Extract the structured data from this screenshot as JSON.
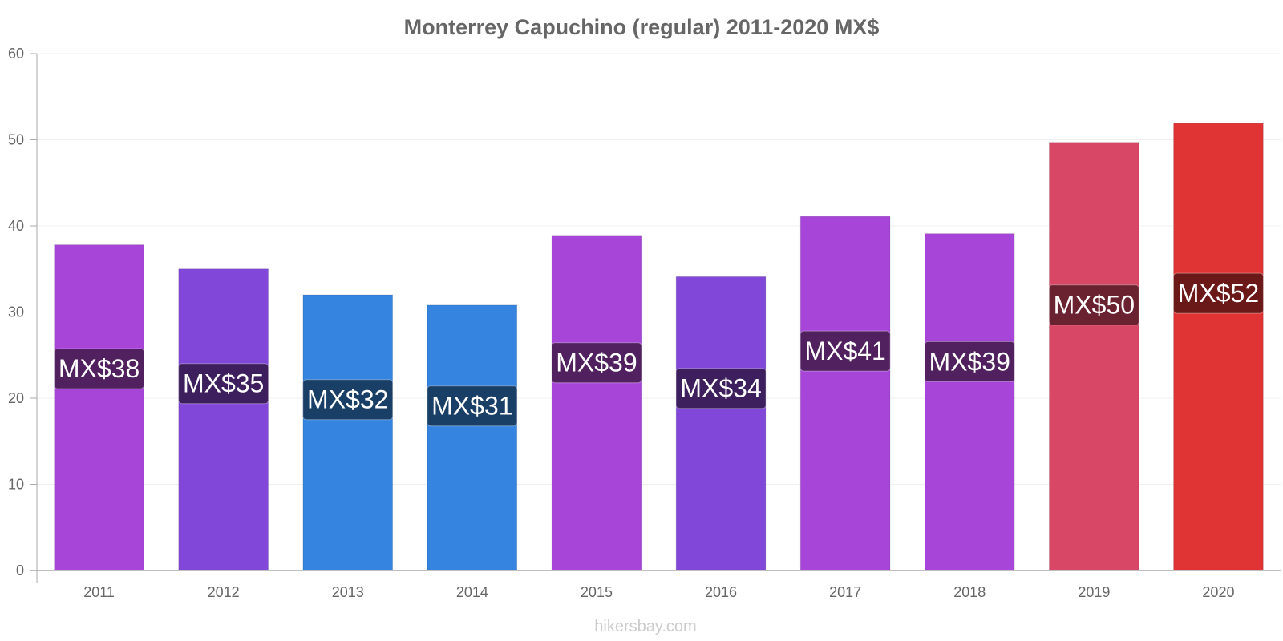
{
  "chart_data": {
    "type": "bar",
    "title": "Monterrey Capuchino (regular) 2011-2020 MX$",
    "xlabel": "",
    "ylabel": "",
    "categories": [
      "2011",
      "2012",
      "2013",
      "2014",
      "2015",
      "2016",
      "2017",
      "2018",
      "2019",
      "2020"
    ],
    "values": [
      37.8,
      35.0,
      32.0,
      30.8,
      38.9,
      34.1,
      41.1,
      39.1,
      49.7,
      51.9
    ],
    "data_labels": [
      "MX$38",
      "MX$35",
      "MX$32",
      "MX$31",
      "MX$39",
      "MX$34",
      "MX$41",
      "MX$39",
      "MX$50",
      "MX$52"
    ],
    "bar_colors": [
      "#a745d9",
      "#8047d9",
      "#3584e0",
      "#3584e0",
      "#a745d9",
      "#8047d9",
      "#a745d9",
      "#a745d9",
      "#d94766",
      "#e03333"
    ],
    "label_bg_colors": [
      "#50215e",
      "#3d1f5e",
      "#1a3f66",
      "#1a3f66",
      "#50215e",
      "#3d1f5e",
      "#50215e",
      "#50215e",
      "#6b2230",
      "#6b1818"
    ],
    "ylim": [
      0,
      60
    ],
    "yticks": [
      "0",
      "10",
      "20",
      "30",
      "40",
      "50",
      "60"
    ],
    "grid": true,
    "legend": "none"
  },
  "credit": "hikersbay.com"
}
